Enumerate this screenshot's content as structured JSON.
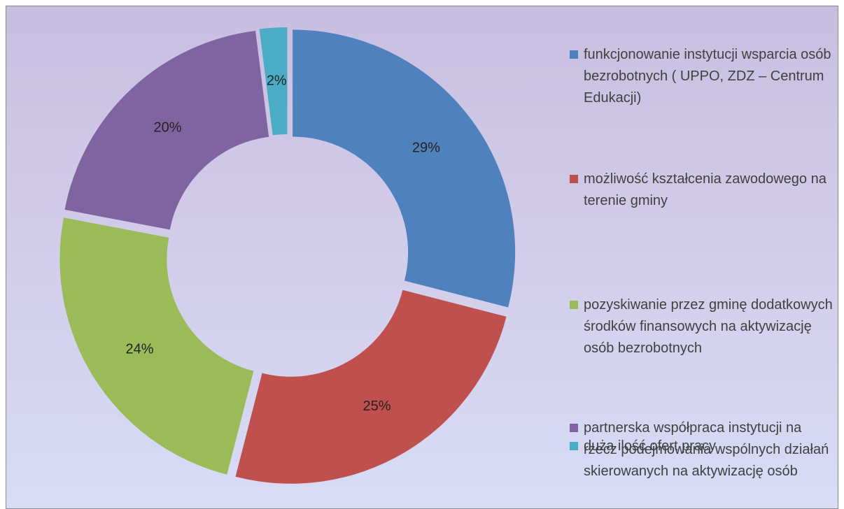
{
  "chart_data": {
    "type": "donut",
    "categories": [
      "funkcjonowanie instytucji wsparcia osób bezrobotnych ( UPPO, ZDZ – Centrum Edukacji)",
      "możliwość kształcenia zawodowego na terenie gminy",
      "pozyskiwanie przez gminę dodatkowych środków finansowych na aktywizację osób bezrobotnych",
      "partnerska współpraca instytucji na rzecz podejmowania wspólnych działań skierowanych na aktywizację osób",
      "duża ilość ofert pracy"
    ],
    "values": [
      29,
      25,
      24,
      20,
      2
    ],
    "value_labels": [
      "29%",
      "25%",
      "24%",
      "20%",
      "2%"
    ],
    "colors": [
      "#4f81bd",
      "#c0504d",
      "#9bbb59",
      "#8064a2",
      "#4bacc6"
    ],
    "legend": "right"
  }
}
